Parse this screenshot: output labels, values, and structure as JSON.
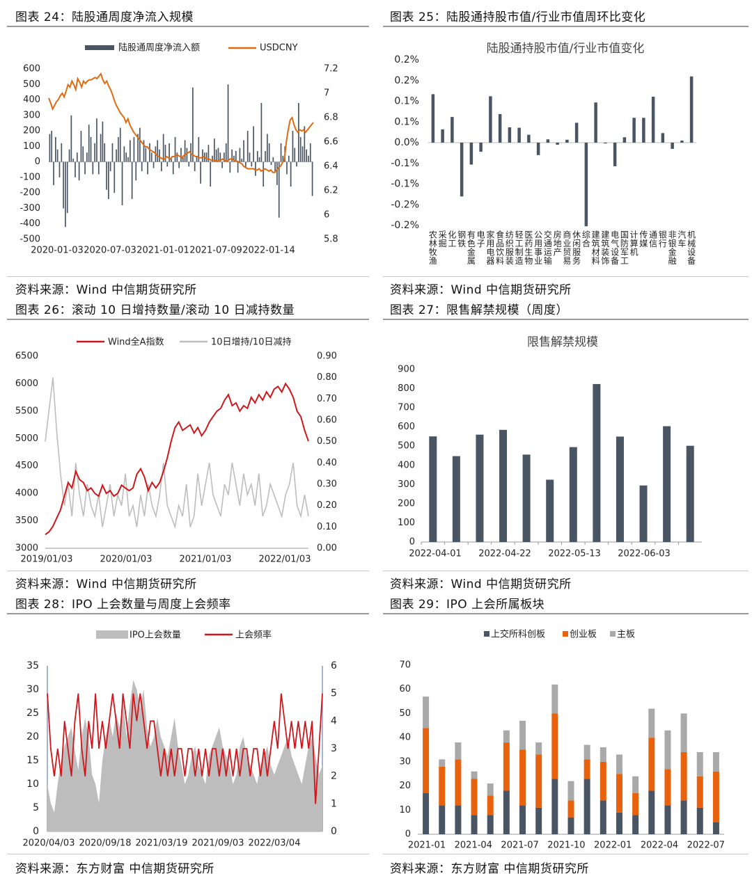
{
  "charts": [
    {
      "caption": "图表 24：陆股通周度净流入规模",
      "source": "资料来源：Wind   中信期货研究所",
      "chart_data": {
        "type": "bar+line",
        "title": "",
        "legend": [
          "陆股通周度净流入额",
          "USDCNY"
        ],
        "left_ticks": [
          "600",
          "500",
          "400",
          "300",
          "200",
          "100",
          "0",
          "-100",
          "-200",
          "-300",
          "-400",
          "-500"
        ],
        "right_ticks": [
          "7.2",
          "7",
          "6.8",
          "6.6",
          "6.4",
          "6.2",
          "6",
          "5.8"
        ],
        "x_ticks": [
          "2020-01-03",
          "2020-07-03",
          "2021-01-01",
          "2021-07-09",
          "2022-01-14"
        ],
        "ylim": [
          -500,
          600
        ],
        "y2lim": [
          5.8,
          7.2
        ],
        "bars": [
          180,
          200,
          -150,
          160,
          80,
          -100,
          120,
          -300,
          -420,
          -330,
          80,
          300,
          20,
          -100,
          60,
          -120,
          200,
          100,
          -80,
          60,
          240,
          160,
          -80,
          120,
          280,
          -80,
          180,
          260,
          120,
          -180,
          -240,
          -60,
          120,
          -200,
          80,
          160,
          220,
          -280,
          100,
          60,
          30,
          140,
          -240,
          160,
          -120,
          180,
          220,
          -60,
          140,
          90,
          -80,
          120,
          60,
          -40,
          100,
          140,
          80,
          -60,
          180,
          110,
          -30,
          120,
          20,
          -80,
          160,
          60,
          -40,
          90,
          40,
          140,
          90,
          -30,
          120,
          480,
          -60,
          30,
          160,
          -140,
          80,
          60,
          60,
          110,
          -160,
          40,
          150,
          80,
          90,
          60,
          -40,
          60,
          120,
          500,
          -70,
          80,
          40,
          70,
          -70,
          90,
          20,
          140,
          -40,
          200,
          60,
          -30,
          230,
          -90,
          70,
          30,
          380,
          -160,
          70,
          180,
          120,
          -20,
          30,
          -70,
          -150,
          -360,
          120,
          40,
          100,
          -80,
          40,
          -160,
          200,
          90,
          -30,
          380,
          160,
          100,
          230,
          80,
          40,
          120,
          -220
        ],
        "line": [
          6.96,
          6.92,
          6.87,
          6.9,
          6.93,
          6.95,
          6.98,
          7.0,
          6.97,
          7.02,
          7.07,
          7.05,
          7.1,
          7.07,
          7.03,
          7.12,
          7.09,
          7.05,
          7.1,
          7.08,
          7.1,
          7.11,
          7.11,
          7.12,
          7.13,
          7.12,
          7.14,
          7.16,
          7.11,
          7.08,
          7.1,
          7.06,
          7.03,
          6.99,
          6.94,
          6.9,
          6.87,
          6.84,
          6.82,
          6.8,
          6.76,
          6.79,
          6.74,
          6.71,
          6.68,
          6.66,
          6.64,
          6.62,
          6.6,
          6.58,
          6.56,
          6.56,
          6.54,
          6.53,
          6.52,
          6.51,
          6.49,
          6.48,
          6.47,
          6.46,
          6.46,
          6.48,
          6.47,
          6.46,
          6.48,
          6.48,
          6.49,
          6.49,
          6.48,
          6.47,
          6.49,
          6.5,
          6.51,
          6.52,
          6.5,
          6.49,
          6.48,
          6.48,
          6.47,
          6.47,
          6.48,
          6.47,
          6.46,
          6.46,
          6.45,
          6.45,
          6.45,
          6.44,
          6.45,
          6.45,
          6.46,
          6.45,
          6.44,
          6.45,
          6.46,
          6.46,
          6.45,
          6.44,
          6.44,
          6.43,
          6.42,
          6.4,
          6.39,
          6.38,
          6.38,
          6.38,
          6.38,
          6.37,
          6.37,
          6.38,
          6.36,
          6.37,
          6.38,
          6.37,
          6.36,
          6.37,
          6.35,
          6.35,
          6.37,
          6.39,
          6.4,
          6.43,
          6.45,
          6.6,
          6.7,
          6.78,
          6.8,
          6.74,
          6.7,
          6.68,
          6.7,
          6.69,
          6.7,
          6.68,
          6.7,
          6.72,
          6.74,
          6.76
        ]
      }
    },
    {
      "caption": "图表 25：陆股通持股市值/行业市值周环比变化",
      "source": "资料来源：Wind   中信期货研究所",
      "chart_data": {
        "type": "bar",
        "title": "陆股通持股市值/行业市值变化",
        "y_ticks": [
          "0.2%",
          "0.2%",
          "0.1%",
          "0.1%",
          "0.0%",
          "-0.1%",
          "-0.1%",
          "-0.2%",
          "-0.2%"
        ],
        "ylim": [
          -0.2,
          0.2
        ],
        "categories": [
          "农林牧渔",
          "采掘",
          "化工",
          "钢铁",
          "有色金属",
          "电子",
          "家用电器",
          "食品饮料",
          "纺织服装",
          "轻工制造",
          "医药生物",
          "公用事业",
          "交通运输",
          "房地产",
          "商业贸易",
          "休闲服务",
          "综合",
          "建筑材料",
          "建筑装饰",
          "电气设备",
          "国防军工",
          "计算机",
          "传媒",
          "通信",
          "银行",
          "非银金融",
          "汽车",
          "机械设备"
        ],
        "category_lines": [
          [
            "农",
            "林",
            "牧",
            "渔"
          ],
          [
            "采",
            "掘"
          ],
          [
            "化",
            "工"
          ],
          [
            "钢",
            "铁"
          ],
          [
            "有",
            "色",
            "金",
            "属"
          ],
          [
            "电",
            "子"
          ],
          [
            "家",
            "用",
            "电",
            "器"
          ],
          [
            "食",
            "品",
            "饮",
            "料"
          ],
          [
            "纺",
            "织",
            "服",
            "装"
          ],
          [
            "轻",
            "工",
            "制",
            "造"
          ],
          [
            "医",
            "药",
            "生",
            "物"
          ],
          [
            "公",
            "用",
            "事",
            "业"
          ],
          [
            "交",
            "通",
            "运",
            "输"
          ],
          [
            "房",
            "地",
            "产"
          ],
          [
            "商",
            "业",
            "贸",
            "易"
          ],
          [
            "休",
            "闲",
            "服",
            "务"
          ],
          [
            "综",
            "合"
          ],
          [
            "建",
            "筑",
            "材",
            "料"
          ],
          [
            "建",
            "筑",
            "装",
            "饰"
          ],
          [
            "电",
            "气",
            "设",
            "备"
          ],
          [
            "国",
            "防",
            "军",
            "工"
          ],
          [
            "计",
            "算",
            "机"
          ],
          [
            "传",
            "媒"
          ],
          [
            "通",
            "信"
          ],
          [
            "银",
            "行"
          ],
          [
            "非",
            "银",
            "金",
            "融"
          ],
          [
            "汽",
            "车"
          ],
          [
            "机",
            "械",
            "设",
            "备"
          ]
        ],
        "values": [
          0.117,
          0.032,
          0.062,
          -0.13,
          -0.053,
          -0.022,
          0.112,
          0.069,
          0.037,
          0.036,
          0.019,
          -0.03,
          0.008,
          -0.005,
          0.007,
          0.048,
          -0.202,
          0.097,
          -0.002,
          -0.057,
          0.013,
          0.06,
          0.06,
          0.111,
          0.023,
          -0.015,
          0.005,
          0.16
        ]
      }
    },
    {
      "caption": "图表 26：滚动 10 日增持数量/滚动 10 日减持数量",
      "source": "资料来源：Wind   中信期货研究所",
      "chart_data": {
        "type": "line",
        "legend": [
          "Wind全A指数",
          "10日增持/10日减持"
        ],
        "left_ticks": [
          "6500",
          "6000",
          "5500",
          "5000",
          "4500",
          "4000",
          "3500",
          "3000"
        ],
        "right_ticks": [
          "0.90",
          "0.80",
          "0.70",
          "0.60",
          "0.50",
          "0.40",
          "0.30",
          "0.20",
          "0.10",
          "0.00"
        ],
        "x_ticks": [
          "2019/01/03",
          "2020/01/03",
          "2021/01/03",
          "2022/01/03"
        ],
        "ylim": [
          3000,
          6500
        ],
        "y2lim": [
          0,
          0.9
        ],
        "series_wind": [
          3250,
          3300,
          3400,
          3550,
          3700,
          3950,
          4200,
          4100,
          4400,
          4250,
          4200,
          4050,
          4100,
          4000,
          3950,
          4150,
          4000,
          4050,
          3950,
          4000,
          4150,
          4100,
          4050,
          4100,
          4350,
          4450,
          4300,
          4050,
          4200,
          4100,
          4200,
          4400,
          4650,
          4950,
          5200,
          5300,
          5150,
          5200,
          5250,
          5100,
          5200,
          5050,
          5150,
          5300,
          5400,
          5500,
          5550,
          5700,
          5800,
          5600,
          5650,
          5500,
          5600,
          5550,
          5750,
          5650,
          5800,
          5700,
          5850,
          5750,
          5900,
          5950,
          5850,
          6000,
          5900,
          5750,
          5500,
          5400,
          5150,
          4950
        ],
        "series_ratio": [
          0.5,
          0.65,
          0.8,
          0.55,
          0.35,
          0.2,
          0.3,
          0.15,
          0.4,
          0.25,
          0.15,
          0.3,
          0.2,
          0.15,
          0.25,
          0.1,
          0.2,
          0.3,
          0.15,
          0.25,
          0.2,
          0.35,
          0.15,
          0.2,
          0.1,
          0.25,
          0.15,
          0.3,
          0.2,
          0.15,
          0.25,
          0.4,
          0.2,
          0.15,
          0.1,
          0.2,
          0.15,
          0.3,
          0.1,
          0.15,
          0.35,
          0.2,
          0.3,
          0.4,
          0.25,
          0.2,
          0.15,
          0.3,
          0.25,
          0.4,
          0.3,
          0.2,
          0.35,
          0.25,
          0.3,
          0.2,
          0.35,
          0.15,
          0.2,
          0.3,
          0.25,
          0.2,
          0.15,
          0.25,
          0.3,
          0.4,
          0.2,
          0.15,
          0.25,
          0.15
        ]
      }
    },
    {
      "caption": "图表 27：限售解禁规模（周度）",
      "source": "资料来源：Wind   中信期货研究所",
      "chart_data": {
        "type": "bar",
        "title": "限售解禁规模",
        "y_ticks": [
          "900",
          "800",
          "700",
          "600",
          "500",
          "400",
          "300",
          "200",
          "100",
          "0"
        ],
        "ylim": [
          0,
          900
        ],
        "x_ticks": [
          "2022-04-01",
          "2022-04-22",
          "2022-05-13",
          "2022-06-03"
        ],
        "values": [
          551,
          448,
          560,
          585,
          456,
          325,
          495,
          824,
          550,
          295,
          604,
          502
        ]
      }
    },
    {
      "caption": "图表 28：IPO 上会数量与周度上会频率",
      "source": "资料来源：东方财富   中信期货研究所",
      "chart_data": {
        "type": "area+line",
        "legend": [
          "IPO上会数量",
          "上会频率"
        ],
        "left_ticks": [
          "35",
          "30",
          "25",
          "20",
          "15",
          "10",
          "5",
          "0"
        ],
        "right_ticks": [
          "6",
          "5",
          "4",
          "3",
          "2",
          "1",
          "0"
        ],
        "x_ticks": [
          "2020/04/03",
          "2020/09/18",
          "2021/03/19",
          "2021/09/03",
          "2022/03/04"
        ],
        "ylim": [
          0,
          35
        ],
        "y2lim": [
          0,
          6
        ],
        "area": [
          10,
          6,
          4,
          10,
          15,
          18,
          20,
          22,
          17,
          13,
          20,
          24,
          20,
          12,
          10,
          6,
          15,
          20,
          24,
          20,
          25,
          22,
          28,
          20,
          27,
          32,
          30,
          26,
          30,
          22,
          18,
          20,
          24,
          20,
          18,
          16,
          20,
          24,
          18,
          14,
          10,
          12,
          16,
          18,
          14,
          12,
          10,
          16,
          18,
          20,
          22,
          18,
          16,
          14,
          10,
          12,
          18,
          20,
          16,
          14,
          12,
          10,
          14,
          16,
          18,
          14,
          12,
          14,
          16,
          18,
          20,
          16,
          14,
          12,
          10,
          14,
          18,
          20,
          16,
          12,
          14
        ],
        "line": [
          5,
          3,
          2,
          3,
          2,
          4,
          3,
          2,
          4,
          5,
          3,
          2,
          4,
          3,
          5,
          3,
          4,
          3,
          4,
          5,
          4,
          3,
          5,
          4,
          3,
          5,
          4,
          5,
          4,
          3,
          4,
          4,
          3,
          2,
          3,
          2,
          3,
          2,
          3,
          3,
          2,
          3,
          3,
          2,
          3,
          2,
          3,
          2,
          3,
          3,
          2,
          3,
          2,
          3,
          2,
          3,
          2,
          3,
          3,
          2,
          3,
          3,
          2,
          3,
          2,
          3,
          4,
          3,
          5,
          4,
          3,
          4,
          3,
          4,
          3,
          4,
          3,
          4,
          1,
          3,
          5
        ]
      }
    },
    {
      "caption": "图表 29：IPO 上会所属板块",
      "source": "资料来源：东方财富   中信期货研究所",
      "chart_data": {
        "type": "stacked-bar",
        "legend": [
          "上交所科创板",
          "创业板",
          "主板"
        ],
        "y_ticks": [
          "70",
          "60",
          "50",
          "40",
          "30",
          "20",
          "10",
          "0"
        ],
        "ylim": [
          0,
          70
        ],
        "x_ticks": [
          "2021-01",
          "2021-04",
          "2021-07",
          "2021-10",
          "2022-01",
          "2022-04",
          "2022-07"
        ],
        "series": [
          {
            "name": "上交所科创板",
            "values": [
              17,
              12,
              12,
              8,
              8,
              18,
              12,
              11,
              23,
              7,
              23,
              14,
              9,
              8,
              18,
              12,
              14,
              11,
              5
            ]
          },
          {
            "name": "创业板",
            "values": [
              27,
              16,
              19,
              15,
              8,
              20,
              23,
              22,
              27,
              7,
              8,
              16,
              16,
              9,
              22,
              15,
              20,
              13,
              21
            ]
          },
          {
            "name": "主板",
            "values": [
              13,
              3,
              7,
              3,
              5,
              5,
              12,
              5,
              12,
              8,
              6,
              6,
              8,
              7,
              12,
              16,
              16,
              10,
              8
            ]
          }
        ]
      }
    }
  ]
}
